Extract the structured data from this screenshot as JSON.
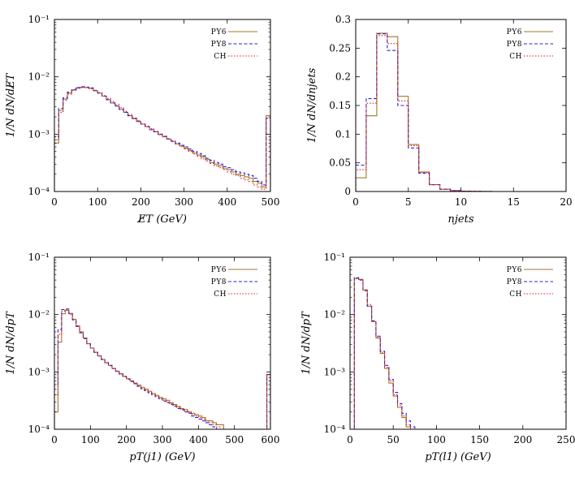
{
  "chart_data": [
    {
      "type": "line",
      "xlabel": "E̸T (GeV)",
      "ylabel": "1/N dN/dE̸T",
      "log_y": true,
      "xlim": [
        0,
        500
      ],
      "ylim": [
        0.0001,
        0.1
      ],
      "x_ticks": [
        0,
        100,
        200,
        300,
        400,
        500
      ],
      "y_ticks": [
        0.0001,
        0.001,
        0.01,
        0.1
      ],
      "y_tick_labels": [
        "10⁻⁴",
        "10⁻³",
        "10⁻²",
        "10⁻¹"
      ],
      "legend_position": "top-right",
      "bin_width": 10,
      "series": [
        {
          "name": "PY6",
          "color": "#a07a2c",
          "dash": "solid",
          "values": [
            0.0007,
            0.0026,
            0.0041,
            0.0052,
            0.0059,
            0.0064,
            0.0066,
            0.0065,
            0.0063,
            0.0057,
            0.0052,
            0.0046,
            0.004,
            0.0035,
            0.0031,
            0.0027,
            0.0024,
            0.0021,
            0.00185,
            0.00165,
            0.0015,
            0.00135,
            0.0012,
            0.0011,
            0.00098,
            0.0009,
            0.00082,
            0.00075,
            0.00068,
            0.00062,
            0.00057,
            0.00052,
            0.00047,
            0.00043,
            0.0004,
            0.00036,
            0.00032,
            0.0003,
            0.00028,
            0.00025,
            0.00024,
            0.00022,
            0.0002,
            0.00019,
            0.00018,
            0.00017,
            0.00015,
            0.00014,
            0.00012,
            0.0021
          ]
        },
        {
          "name": "PY8",
          "color": "#2525dd",
          "dash": "dashed",
          "values": [
            0.0009,
            0.0028,
            0.0043,
            0.0054,
            0.006,
            0.0065,
            0.0067,
            0.0066,
            0.0064,
            0.0058,
            0.0052,
            0.0046,
            0.004,
            0.0035,
            0.0031,
            0.0027,
            0.0024,
            0.0021,
            0.0019,
            0.0017,
            0.0015,
            0.00135,
            0.0012,
            0.0011,
            0.001,
            0.00092,
            0.00083,
            0.00076,
            0.0007,
            0.00064,
            0.0006,
            0.00055,
            0.0005,
            0.00046,
            0.00042,
            0.00038,
            0.00035,
            0.00032,
            0.0003,
            0.00027,
            0.00026,
            0.00024,
            0.00022,
            0.00021,
            0.0002,
            0.00019,
            0.00017,
            0.00015,
            0.00013,
            0.0019
          ]
        },
        {
          "name": "CH",
          "color": "#e01a1a",
          "dash": "dotted",
          "values": [
            0.0008,
            0.0024,
            0.0039,
            0.005,
            0.0058,
            0.0063,
            0.0065,
            0.0065,
            0.0062,
            0.0058,
            0.0053,
            0.0047,
            0.0042,
            0.0037,
            0.0033,
            0.0029,
            0.0025,
            0.0022,
            0.0019,
            0.0017,
            0.0015,
            0.00138,
            0.00125,
            0.00112,
            0.001,
            0.0009,
            0.00082,
            0.00074,
            0.00067,
            0.00061,
            0.00055,
            0.0005,
            0.00045,
            0.00041,
            0.00037,
            0.00034,
            0.00031,
            0.00028,
            0.00026,
            0.00024,
            0.00022,
            0.0002,
            0.00019,
            0.00017,
            0.00016,
            0.00015,
            0.00013,
            0.00012,
            0.00011,
            0.0019
          ]
        }
      ]
    },
    {
      "type": "line",
      "xlabel": "njets",
      "ylabel": "1/N dN/dnjets",
      "log_y": false,
      "xlim": [
        0,
        20
      ],
      "ylim": [
        0,
        0.3
      ],
      "x_ticks": [
        0,
        5,
        10,
        15,
        20
      ],
      "y_ticks": [
        0,
        0.05,
        0.1,
        0.15,
        0.2,
        0.25,
        0.3
      ],
      "y_tick_labels": [
        "0",
        "0.05",
        "0.1",
        "0.15",
        "0.2",
        "0.25",
        "0.3"
      ],
      "legend_position": "top-right",
      "bin_width": 1,
      "series": [
        {
          "name": "PY6",
          "color": "#a07a2c",
          "dash": "solid",
          "values": [
            0.024,
            0.132,
            0.276,
            0.27,
            0.166,
            0.082,
            0.034,
            0.012,
            0.004,
            0.0015,
            0.0006,
            0.0002,
            0.0001,
            0,
            0,
            0,
            0,
            0,
            0,
            0
          ]
        },
        {
          "name": "PY8",
          "color": "#2525dd",
          "dash": "dashed",
          "values": [
            0.046,
            0.162,
            0.275,
            0.246,
            0.15,
            0.076,
            0.032,
            0.012,
            0.004,
            0.0015,
            0.0006,
            0.0002,
            0.0001,
            0,
            0,
            0,
            0,
            0,
            0,
            0
          ]
        },
        {
          "name": "CH",
          "color": "#e01a1a",
          "dash": "dotted",
          "values": [
            0.038,
            0.154,
            0.272,
            0.258,
            0.158,
            0.08,
            0.033,
            0.012,
            0.004,
            0.0015,
            0.0006,
            0.0002,
            0.0001,
            0,
            0,
            0,
            0,
            0,
            0,
            0
          ]
        }
      ]
    },
    {
      "type": "line",
      "xlabel": "pT(j1) (GeV)",
      "ylabel": "1/N dN/dpT",
      "log_y": true,
      "xlim": [
        0,
        600
      ],
      "ylim": [
        0.0001,
        0.1
      ],
      "x_ticks": [
        0,
        100,
        200,
        300,
        400,
        500,
        600
      ],
      "y_ticks": [
        0.0001,
        0.001,
        0.01,
        0.1
      ],
      "y_tick_labels": [
        "10⁻⁴",
        "10⁻³",
        "10⁻²",
        "10⁻¹"
      ],
      "legend_position": "top-right",
      "bin_width": 10,
      "series": [
        {
          "name": "PY6",
          "color": "#a07a2c",
          "dash": "solid",
          "values": [
            0.0002,
            0.0033,
            0.0103,
            0.0118,
            0.0105,
            0.0083,
            0.0064,
            0.005,
            0.0039,
            0.0031,
            0.0026,
            0.0022,
            0.0019,
            0.00165,
            0.00145,
            0.0013,
            0.00115,
            0.00103,
            0.00093,
            0.00084,
            0.00076,
            0.0007,
            0.00064,
            0.00059,
            0.00054,
            0.0005,
            0.00046,
            0.00042,
            0.00039,
            0.00036,
            0.00034,
            0.00032,
            0.00029,
            0.00027,
            0.00025,
            0.00023,
            0.00022,
            0.0002,
            0.00019,
            0.00018,
            0.00017,
            0.00016,
            0.00014,
            0.00014,
            0.00013,
            0.00012,
            0.00012,
            0.0001,
            0.0001,
            0.0001,
            0.0001,
            0.0001,
            0.0001,
            0.0001,
            0.0001,
            0.0001,
            0.0001,
            0.0001,
            0.0001,
            0.0009
          ]
        },
        {
          "name": "PY8",
          "color": "#2525dd",
          "dash": "dashed",
          "values": [
            0.0006,
            0.0055,
            0.0122,
            0.0125,
            0.0104,
            0.0081,
            0.0062,
            0.0048,
            0.0038,
            0.0031,
            0.0026,
            0.0022,
            0.0019,
            0.00165,
            0.00145,
            0.0013,
            0.00115,
            0.00103,
            0.00092,
            0.00083,
            0.00075,
            0.00068,
            0.00062,
            0.00056,
            0.00051,
            0.00047,
            0.00043,
            0.0004,
            0.00037,
            0.00034,
            0.00031,
            0.00029,
            0.00027,
            0.00025,
            0.00023,
            0.00022,
            0.0002,
            0.00019,
            0.00017,
            0.00016,
            0.00015,
            0.00014,
            0.00013,
            0.00012,
            0.00011,
            0.0001,
            0.0001,
            0.0001,
            0.0001,
            0.0001,
            0.0001,
            0.0001,
            0.0001,
            0.0001,
            0.0001,
            0.0001,
            0.0001,
            0.0001,
            0.0001,
            0.0009
          ]
        },
        {
          "name": "CH",
          "color": "#e01a1a",
          "dash": "dotted",
          "values": [
            0.0004,
            0.0045,
            0.0115,
            0.012,
            0.0101,
            0.008,
            0.0062,
            0.0049,
            0.0039,
            0.0031,
            0.0026,
            0.0022,
            0.0019,
            0.00163,
            0.00143,
            0.00128,
            0.00114,
            0.00102,
            0.00092,
            0.00083,
            0.00075,
            0.00069,
            0.00063,
            0.00057,
            0.00052,
            0.00048,
            0.00044,
            0.0004,
            0.00037,
            0.00034,
            0.00032,
            0.0003,
            0.00028,
            0.00026,
            0.00024,
            0.00022,
            0.00021,
            0.0002,
            0.00018,
            0.00017,
            0.00016,
            0.00015,
            0.00014,
            0.00013,
            0.00012,
            0.00011,
            0.0001,
            0.0001,
            0.0001,
            0.0001,
            0.0001,
            0.0001,
            0.0001,
            0.0001,
            0.0001,
            0.0001,
            0.0001,
            0.0001,
            0.0001,
            0.0009
          ]
        }
      ]
    },
    {
      "type": "line",
      "xlabel": "pT(l1) (GeV)",
      "ylabel": "1/N dN/dpT",
      "log_y": true,
      "xlim": [
        0,
        250
      ],
      "ylim": [
        0.0001,
        0.1
      ],
      "x_ticks": [
        0,
        50,
        100,
        150,
        200,
        250
      ],
      "y_ticks": [
        0.0001,
        0.001,
        0.01,
        0.1
      ],
      "y_tick_labels": [
        "10⁻⁴",
        "10⁻³",
        "10⁻²",
        "10⁻¹"
      ],
      "legend_position": "top-right",
      "bin_width": 5,
      "series": [
        {
          "name": "PY6",
          "color": "#a07a2c",
          "dash": "solid",
          "values": [
            0.0001,
            0.043,
            0.041,
            0.027,
            0.014,
            0.0075,
            0.0039,
            0.0021,
            0.00115,
            0.00064,
            0.00038,
            0.00024,
            0.00016,
            0.00011,
            0.0001,
            0.0001,
            0.0001,
            0.0001,
            0.0001,
            0.0001
          ]
        },
        {
          "name": "PY8",
          "color": "#2525dd",
          "dash": "dashed",
          "values": [
            0.0001,
            0.044,
            0.04,
            0.026,
            0.014,
            0.0078,
            0.0042,
            0.0023,
            0.0013,
            0.00074,
            0.00044,
            0.00028,
            0.00019,
            0.00014,
            0.00011,
            0.0001,
            0.0001,
            0.0001,
            0.0001,
            0.0001
          ]
        },
        {
          "name": "CH",
          "color": "#e01a1a",
          "dash": "dotted",
          "values": [
            0.0001,
            0.042,
            0.041,
            0.027,
            0.015,
            0.0077,
            0.004,
            0.0022,
            0.0012,
            0.0007,
            0.0004,
            0.00026,
            0.00017,
            0.00012,
            0.0001,
            0.0001,
            0.0001,
            0.0001,
            0.0001,
            0.0001
          ]
        }
      ]
    }
  ]
}
